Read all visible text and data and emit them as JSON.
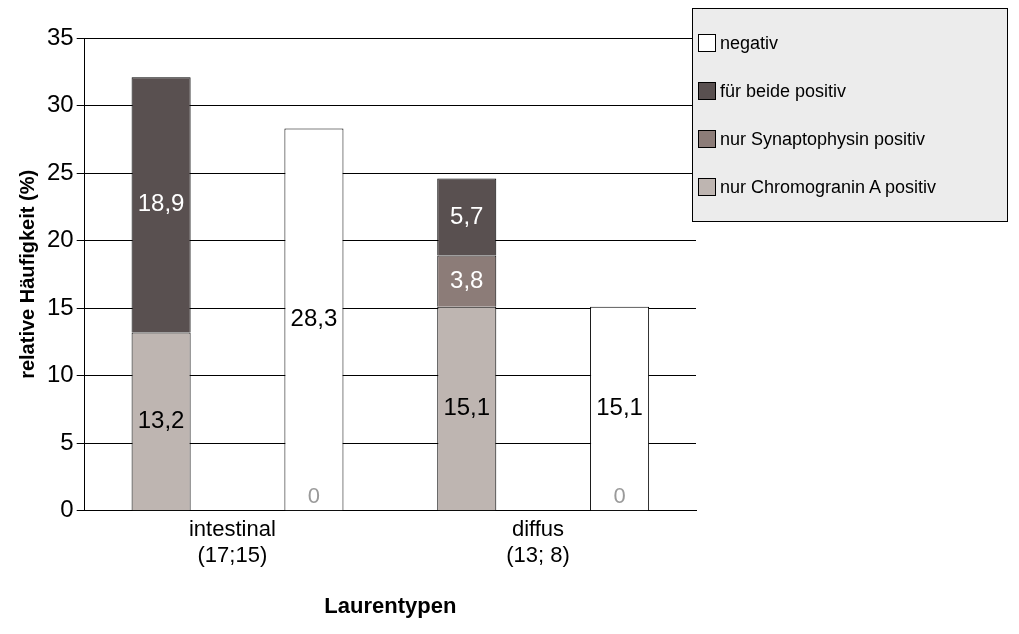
{
  "chart_data": {
    "type": "bar",
    "xlabel": "Laurentypen",
    "ylabel": "relative Häufigkeit (%)",
    "categories": [
      "intestinal\n(17;15)",
      null,
      "diffus\n(13; 8)",
      null
    ],
    "stacked": true,
    "series": [
      {
        "name": "nur Chromogranin A positiv",
        "color": "#beb5b1",
        "values": [
          13.2,
          null,
          15.1,
          null
        ],
        "value_labels": [
          "13,2",
          null,
          "15,1",
          null
        ]
      },
      {
        "name": "nur Synaptophysin positiv",
        "color": "#8c7c78",
        "values": [
          0,
          null,
          3.8,
          null
        ],
        "value_labels": [
          null,
          null,
          "3,8",
          null
        ]
      },
      {
        "name": "für beide positiv",
        "color": "#595050",
        "values": [
          18.9,
          null,
          5.7,
          null
        ],
        "value_labels": [
          "18,9",
          null,
          "5,7",
          null
        ]
      },
      {
        "name": "negativ",
        "color": "#ffffff",
        "values": [
          null,
          28.3,
          null,
          15.1
        ],
        "value_labels": [
          null,
          "28,3",
          null,
          "15,1"
        ]
      }
    ],
    "annotations": [
      "0",
      "0"
    ],
    "ylim": [
      0,
      35
    ],
    "yticks": [
      0,
      5,
      10,
      15,
      20,
      25,
      30,
      35
    ],
    "grid": "y",
    "legend": "top right"
  }
}
